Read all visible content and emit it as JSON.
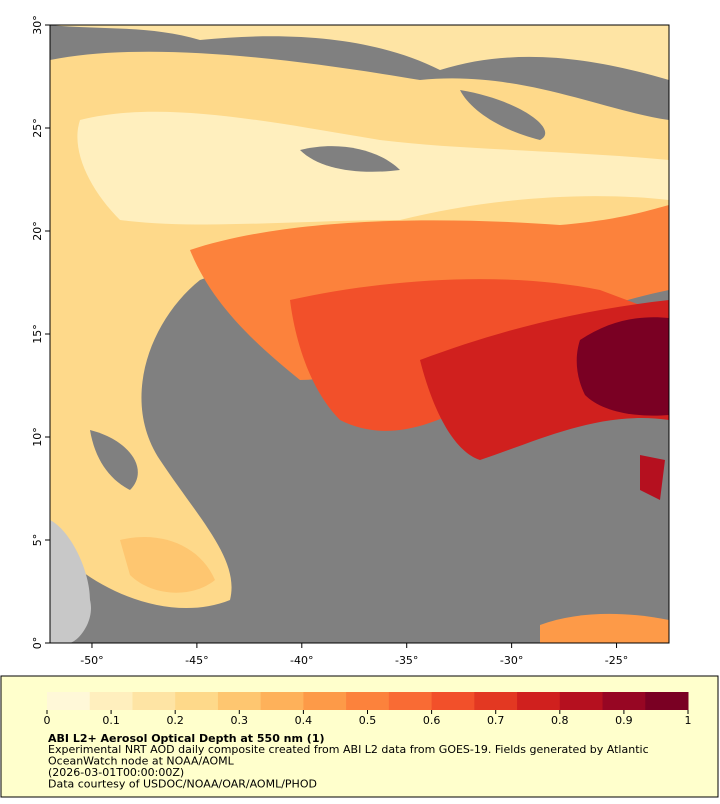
{
  "map": {
    "xlim": [
      -52,
      -22.5
    ],
    "ylim": [
      0,
      30
    ],
    "xticks": [
      {
        "value": -50,
        "label": "-50°"
      },
      {
        "value": -45,
        "label": "-45°"
      },
      {
        "value": -40,
        "label": "-40°"
      },
      {
        "value": -35,
        "label": "-35°"
      },
      {
        "value": -30,
        "label": "-30°"
      },
      {
        "value": -25,
        "label": "-25°"
      }
    ],
    "yticks": [
      {
        "value": 0,
        "label": "0°"
      },
      {
        "value": 5,
        "label": "5°"
      },
      {
        "value": 10,
        "label": "10°"
      },
      {
        "value": 15,
        "label": "15°"
      },
      {
        "value": 20,
        "label": "20°"
      },
      {
        "value": 25,
        "label": "25°"
      },
      {
        "value": 30,
        "label": "30°"
      }
    ]
  },
  "colorbar": {
    "lim": [
      0,
      1
    ],
    "ticks": [
      0,
      0.1,
      0.2,
      0.3,
      0.4,
      0.5,
      0.6,
      0.7,
      0.8,
      0.9,
      1
    ],
    "colors": [
      "#fff8d8",
      "#ffefbe",
      "#fee4a4",
      "#fed98a",
      "#fec670",
      "#feb15a",
      "#fd9a48",
      "#fc823c",
      "#f96b34",
      "#f2502a",
      "#e33822",
      "#d0201e",
      "#b5101f",
      "#970623",
      "#7a0023"
    ]
  },
  "legend": {
    "title": "ABI L2+ Aerosol Optical Depth at 550 nm (1)",
    "lines": [
      "Experimental NRT AOD daily composite created from ABI L2 data from GOES-19. Fields generated by Atlantic",
      "OceanWatch node at NOAA/AOML",
      "(2026-03-01T00:00:00Z)",
      "Data courtesy of USDOC/NOAA/OAR/AOML/PHOD"
    ]
  }
}
